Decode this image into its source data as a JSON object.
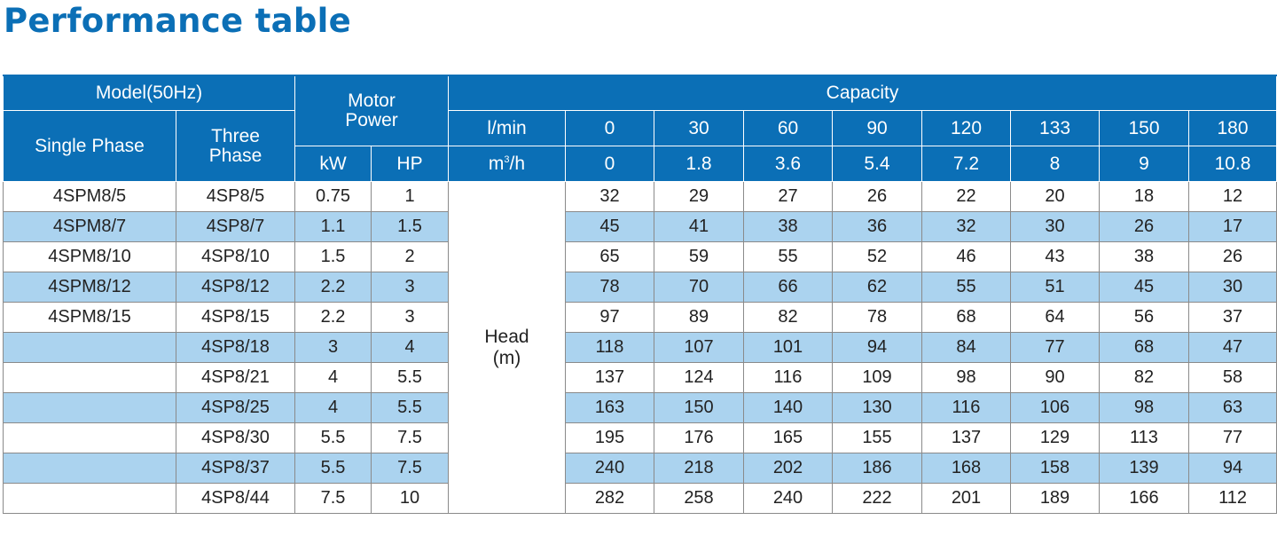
{
  "title": "Performance table",
  "header": {
    "model": "Model(50Hz)",
    "motor_power": "Motor Power",
    "capacity": "Capacity",
    "single_phase": "Single Phase",
    "three_phase": "Three Phase",
    "kw": "kW",
    "hp": "HP",
    "lmin_label": "l/min",
    "m3h_label": "m",
    "m3h_sup": "3",
    "m3h_suffix": "/h",
    "lmin": [
      "0",
      "30",
      "60",
      "90",
      "120",
      "133",
      "150",
      "180"
    ],
    "m3h": [
      "0",
      "1.8",
      "3.6",
      "5.4",
      "7.2",
      "8",
      "9",
      "10.8"
    ]
  },
  "head_label": "Head",
  "head_unit": "(m)",
  "rows": [
    {
      "single": "4SPM8/5",
      "three": "4SP8/5",
      "kw": "0.75",
      "hp": "1",
      "values": [
        "32",
        "29",
        "27",
        "26",
        "22",
        "20",
        "18",
        "12"
      ]
    },
    {
      "single": "4SPM8/7",
      "three": "4SP8/7",
      "kw": "1.1",
      "hp": "1.5",
      "values": [
        "45",
        "41",
        "38",
        "36",
        "32",
        "30",
        "26",
        "17"
      ]
    },
    {
      "single": "4SPM8/10",
      "three": "4SP8/10",
      "kw": "1.5",
      "hp": "2",
      "values": [
        "65",
        "59",
        "55",
        "52",
        "46",
        "43",
        "38",
        "26"
      ]
    },
    {
      "single": "4SPM8/12",
      "three": "4SP8/12",
      "kw": "2.2",
      "hp": "3",
      "values": [
        "78",
        "70",
        "66",
        "62",
        "55",
        "51",
        "45",
        "30"
      ]
    },
    {
      "single": "4SPM8/15",
      "three": "4SP8/15",
      "kw": "2.2",
      "hp": "3",
      "values": [
        "97",
        "89",
        "82",
        "78",
        "68",
        "64",
        "56",
        "37"
      ]
    },
    {
      "single": "",
      "three": "4SP8/18",
      "kw": "3",
      "hp": "4",
      "values": [
        "118",
        "107",
        "101",
        "94",
        "84",
        "77",
        "68",
        "47"
      ]
    },
    {
      "single": "",
      "three": "4SP8/21",
      "kw": "4",
      "hp": "5.5",
      "values": [
        "137",
        "124",
        "116",
        "109",
        "98",
        "90",
        "82",
        "58"
      ]
    },
    {
      "single": "",
      "three": "4SP8/25",
      "kw": "4",
      "hp": "5.5",
      "values": [
        "163",
        "150",
        "140",
        "130",
        "116",
        "106",
        "98",
        "63"
      ]
    },
    {
      "single": "",
      "three": "4SP8/30",
      "kw": "5.5",
      "hp": "7.5",
      "values": [
        "195",
        "176",
        "165",
        "155",
        "137",
        "129",
        "113",
        "77"
      ]
    },
    {
      "single": "",
      "three": "4SP8/37",
      "kw": "5.5",
      "hp": "7.5",
      "values": [
        "240",
        "218",
        "202",
        "186",
        "168",
        "158",
        "139",
        "94"
      ]
    },
    {
      "single": "",
      "three": "4SP8/44",
      "kw": "7.5",
      "hp": "10",
      "values": [
        "282",
        "258",
        "240",
        "222",
        "201",
        "189",
        "166",
        "112"
      ]
    }
  ],
  "colors": {
    "brand_blue": "#0b6fb6",
    "row_stripe": "#abd3ef"
  }
}
